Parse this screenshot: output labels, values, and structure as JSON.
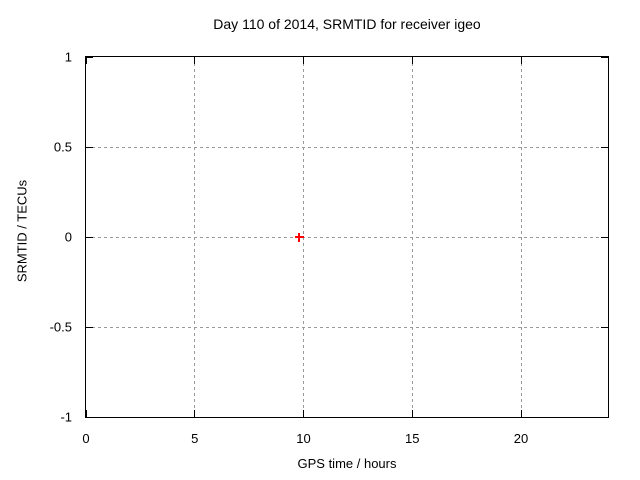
{
  "chart_data": {
    "type": "scatter",
    "title": "Day 110 of 2014, SRMTID for receiver igeo",
    "xlabel": "GPS time / hours",
    "ylabel": "SRMTID / TECUs",
    "xlim": [
      0,
      24
    ],
    "ylim": [
      -1,
      1
    ],
    "xticks": [
      0,
      5,
      10,
      15,
      20
    ],
    "yticks": [
      -1,
      -0.5,
      0,
      0.5,
      1
    ],
    "grid": true,
    "legend": "none",
    "series": [
      {
        "name": "SRMTID",
        "marker": "plus",
        "color": "#ff0000",
        "points": [
          {
            "x": 9.8,
            "y": 0.0
          }
        ]
      }
    ],
    "colors": {
      "background": "#ffffff",
      "border": "#000000",
      "grid": "#9a9a9a",
      "text": "#000000"
    }
  }
}
